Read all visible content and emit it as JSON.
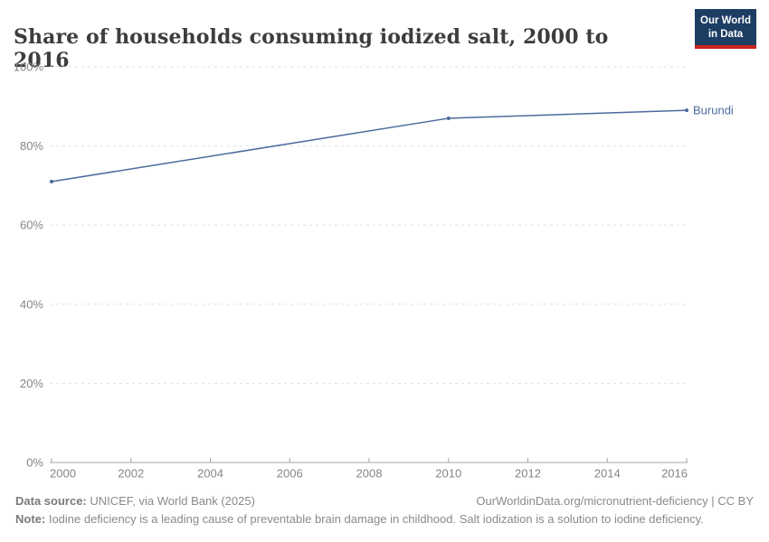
{
  "header": {
    "title": "Share of households consuming iodized salt, 2000 to 2016",
    "logo": {
      "line1": "Our World",
      "line2": "in Data",
      "bg_color": "#1d3d63",
      "accent_color": "#c8231f",
      "text_color": "#ffffff"
    }
  },
  "chart_data": {
    "type": "line",
    "title": "Share of households consuming iodized salt, 2000 to 2016",
    "xlabel": "",
    "ylabel": "",
    "xlim": [
      2000,
      2016
    ],
    "ylim": [
      0,
      100
    ],
    "x_ticks": [
      2000,
      2002,
      2004,
      2006,
      2008,
      2010,
      2012,
      2014,
      2016
    ],
    "x_tick_labels": [
      "2000",
      "2002",
      "2004",
      "2006",
      "2008",
      "2010",
      "2012",
      "2014",
      "2016"
    ],
    "y_ticks": [
      0,
      20,
      40,
      60,
      80,
      100
    ],
    "y_tick_labels": [
      "0%",
      "20%",
      "40%",
      "60%",
      "80%",
      "100%"
    ],
    "grid": "horizontal-dashed",
    "legend": "line-end-label",
    "series": [
      {
        "name": "Burundi",
        "color": "#4c6a9c",
        "x": [
          2000,
          2010,
          2016
        ],
        "values": [
          71,
          87,
          89
        ]
      }
    ]
  },
  "footer": {
    "source_label": "Data source:",
    "source_text": " UNICEF, via World Bank (2025)",
    "right_text": "OurWorldinData.org/micronutrient-deficiency | CC BY",
    "note_label": "Note:",
    "note_text": " Iodine deficiency is a leading cause of preventable brain damage in childhood. Salt iodization is a solution to iodine deficiency."
  }
}
